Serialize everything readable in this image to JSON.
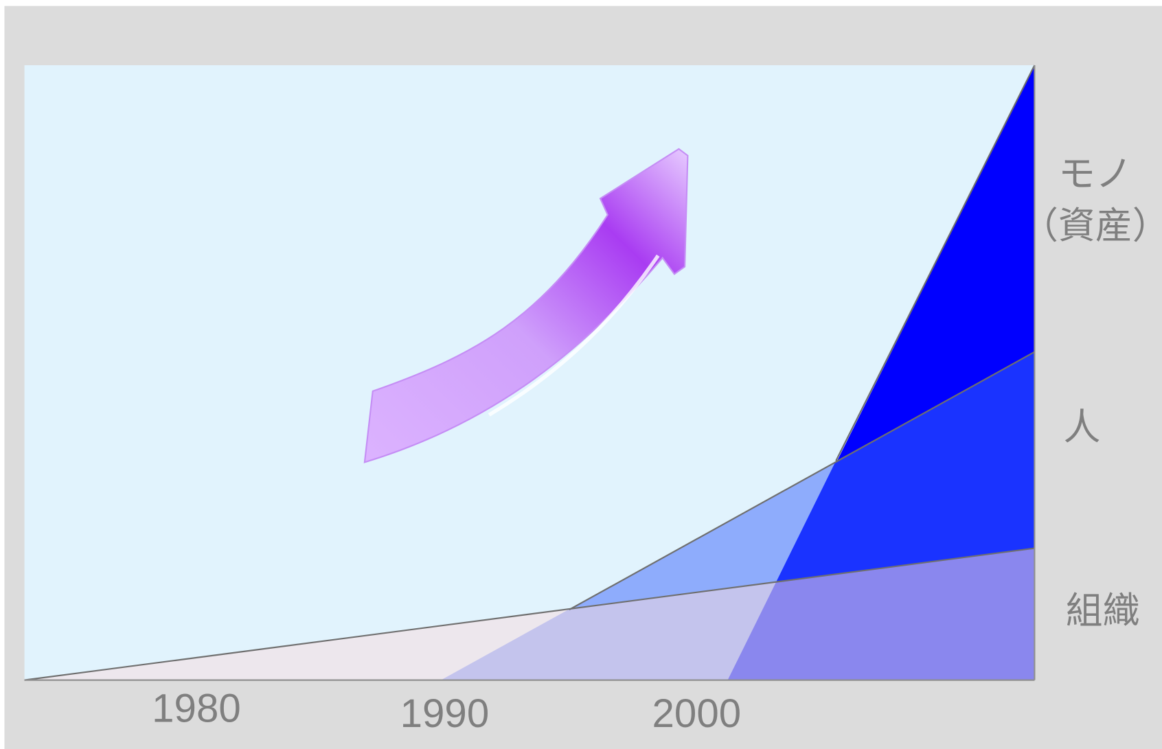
{
  "side_labels": [
    "モノ",
    "（資産）",
    "人",
    "組織"
  ],
  "years": [
    "1980",
    "1990",
    "2000"
  ]
}
